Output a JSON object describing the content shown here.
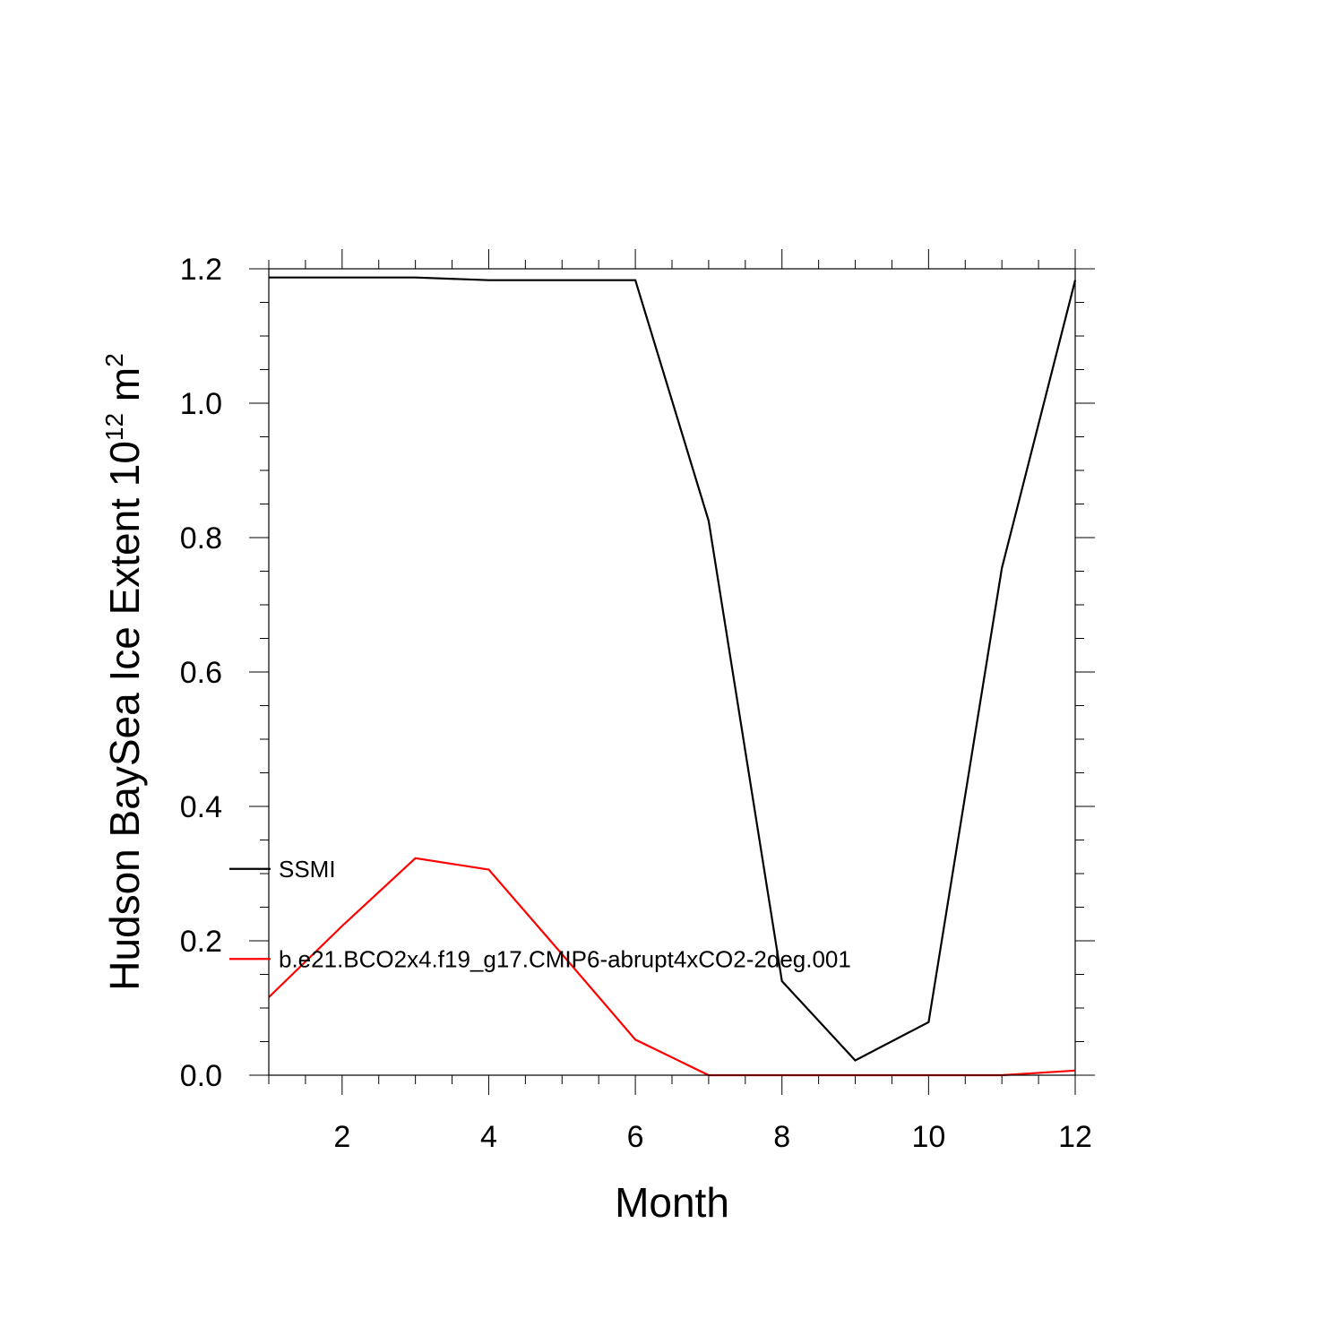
{
  "chart_data": {
    "type": "line",
    "xlabel": "Month",
    "ylabel": {
      "prefix": "Hudson BaySea Ice Extent 10",
      "exponent": "12",
      "unit": " m",
      "unit_exponent": "2"
    },
    "xlim": [
      1,
      12
    ],
    "ylim": [
      0.0,
      1.2
    ],
    "xticks": [
      2,
      4,
      6,
      8,
      10,
      12
    ],
    "xtick_labels": [
      "2",
      "4",
      "6",
      "8",
      "10",
      "12"
    ],
    "yticks": [
      0.0,
      0.2,
      0.4,
      0.6,
      0.8,
      1.0,
      1.2
    ],
    "ytick_labels": [
      "0.0",
      "0.2",
      "0.4",
      "0.6",
      "0.8",
      "1.0",
      "1.2"
    ],
    "grid": false,
    "legend_position": "left-middle",
    "series": [
      {
        "name": "SSMI",
        "color": "#000000",
        "x": [
          1,
          2,
          3,
          4,
          5,
          6,
          7,
          8,
          9,
          10,
          11,
          12
        ],
        "y": [
          1.187,
          1.187,
          1.187,
          1.183,
          1.183,
          1.183,
          0.825,
          0.14,
          0.022,
          0.079,
          0.755,
          1.183
        ]
      },
      {
        "name": "b.e21.BCO2x4.f19_g17.CMIP6-abrupt4xCO2-2deg.001",
        "color": "#ff0000",
        "x": [
          1,
          2,
          3,
          4,
          5,
          6,
          7,
          8,
          9,
          10,
          11,
          12
        ],
        "y": [
          0.116,
          0.222,
          0.323,
          0.306,
          0.18,
          0.053,
          0.0,
          0.0,
          0.0,
          0.0,
          0.0,
          0.007
        ]
      }
    ]
  }
}
